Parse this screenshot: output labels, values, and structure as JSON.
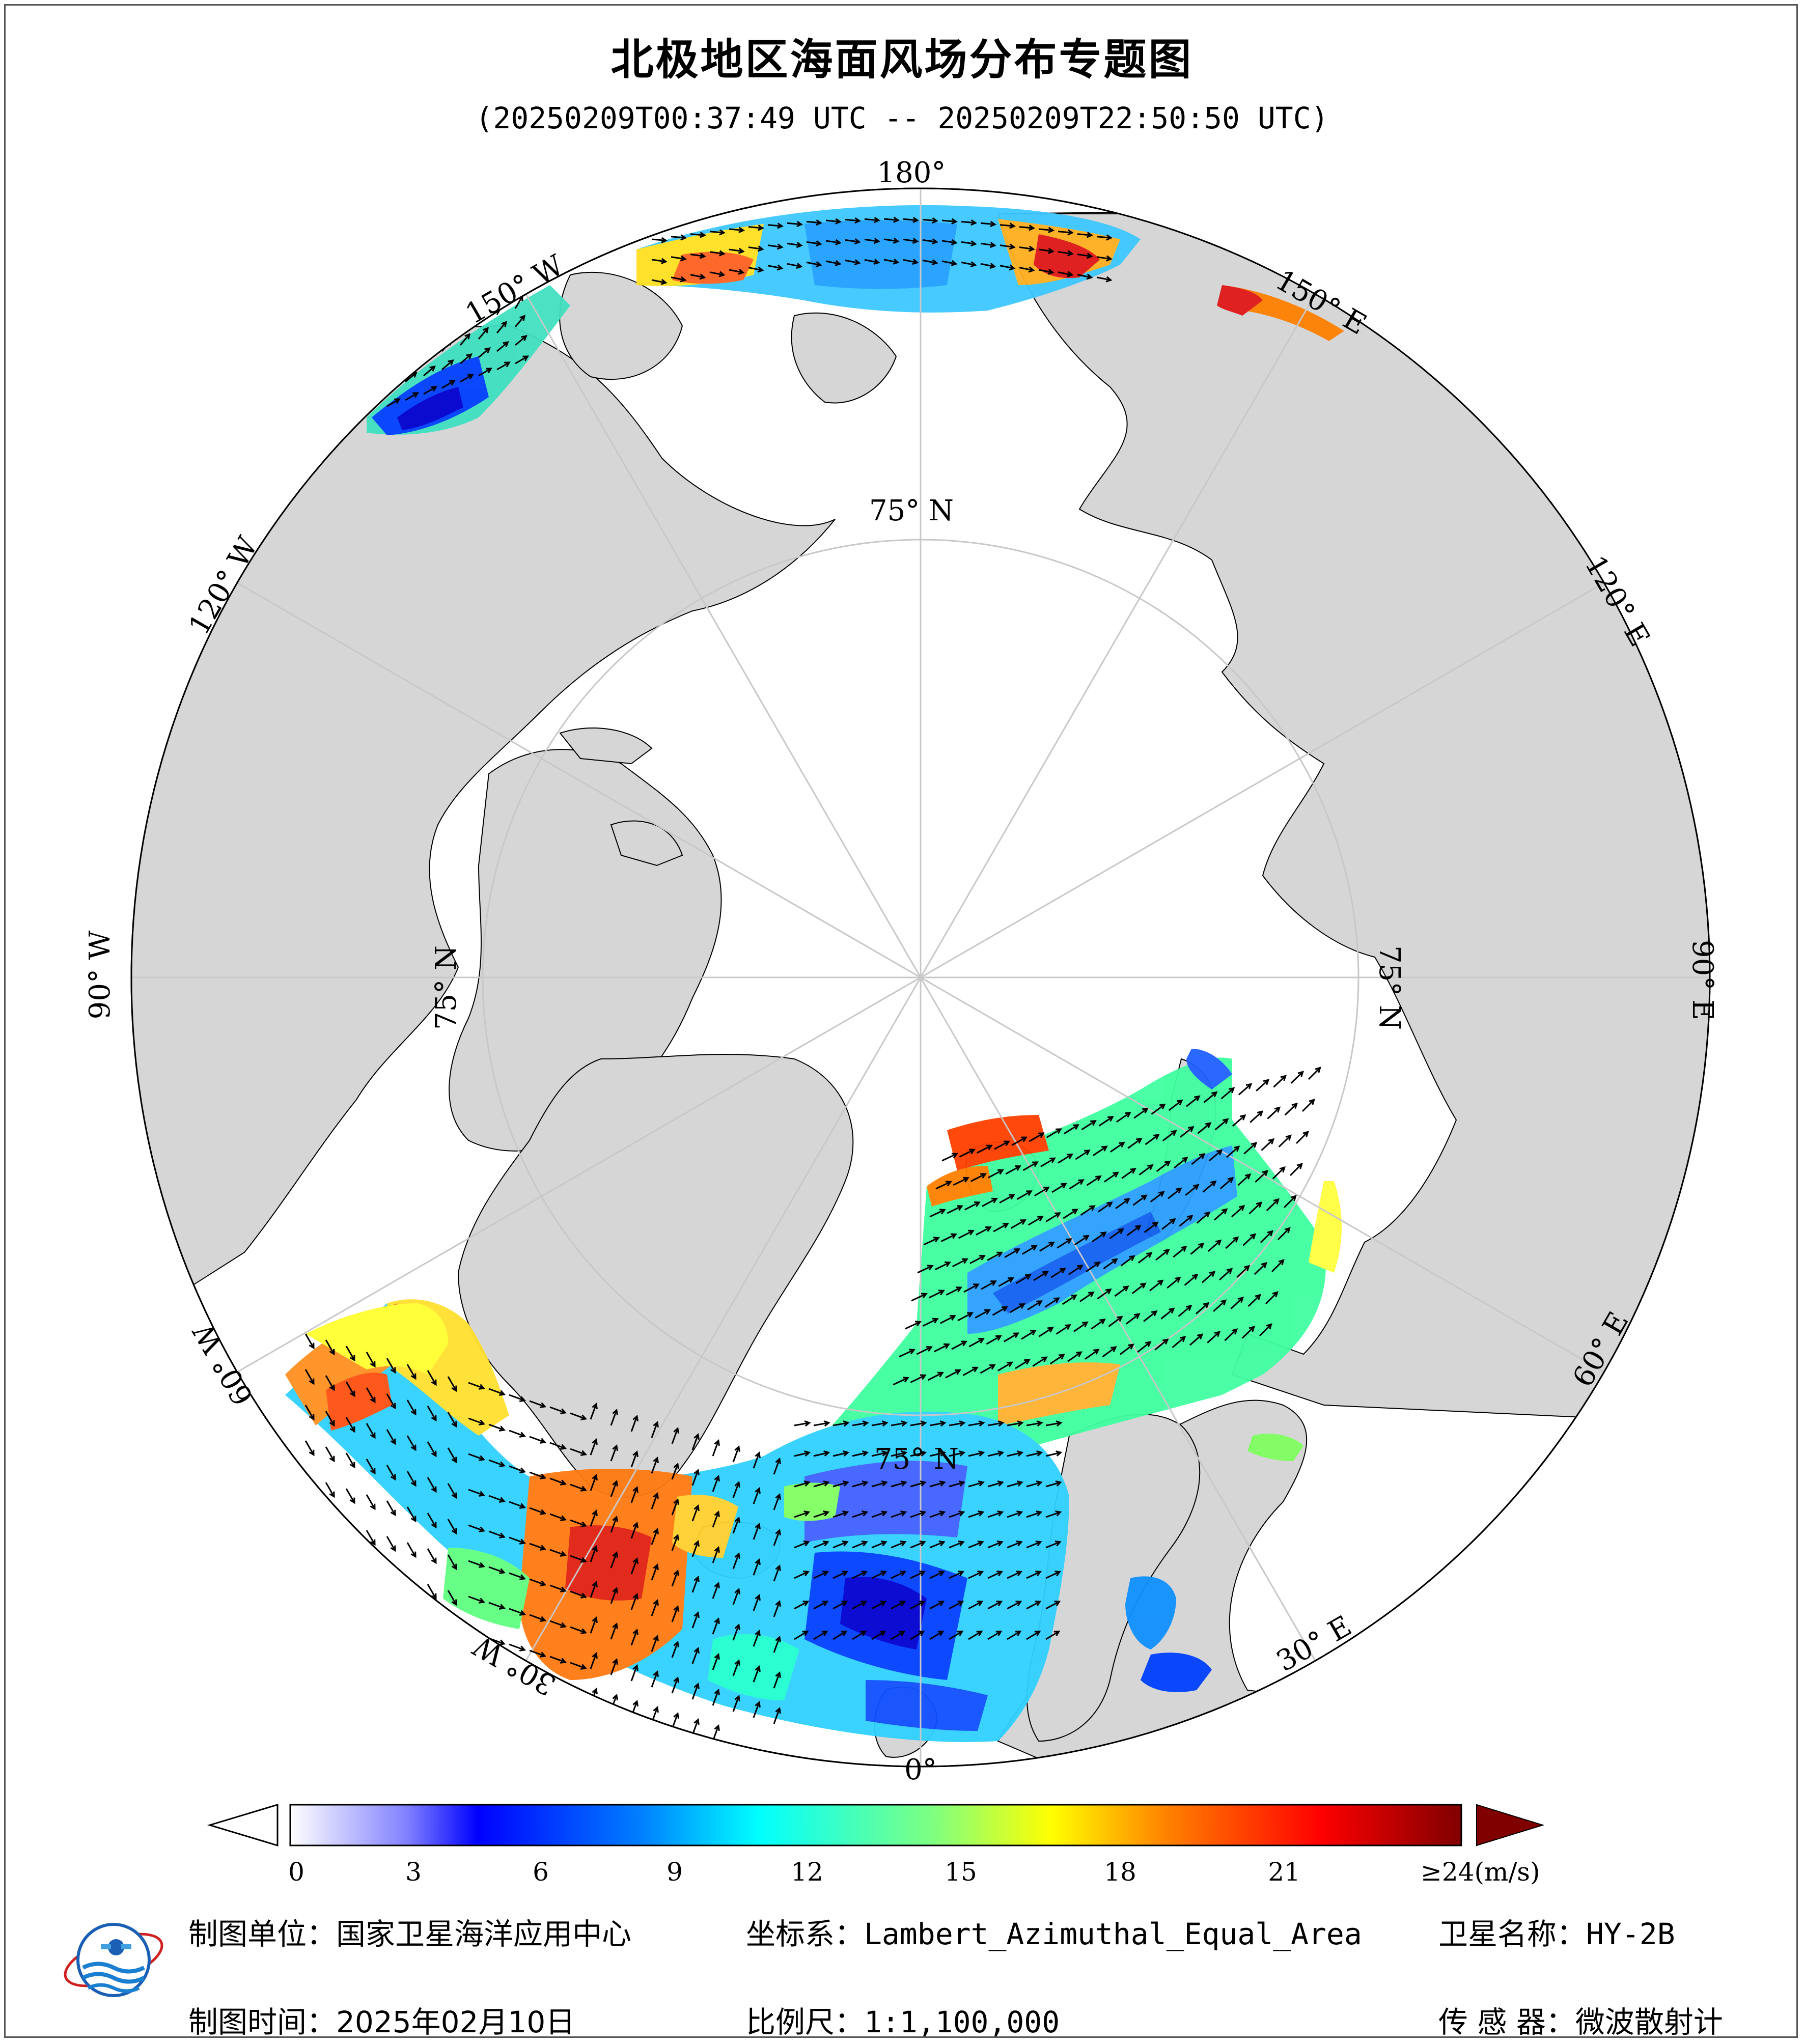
{
  "title": "北极地区海面风场分布专题图",
  "subtitle": "(20250209T00:37:49 UTC -- 20250209T22:50:50 UTC)",
  "map": {
    "projection": "Lambert_Azimuthal_Equal_Area",
    "center": "North Pole",
    "meridian_labels": [
      "180°",
      "150° E",
      "120° E",
      "90° E",
      "60° E",
      "30° E",
      "0°",
      "30° W",
      "60° W",
      "90° W",
      "120° W",
      "150° W"
    ],
    "parallel_labels": [
      "75° N",
      "75° N",
      "75° N",
      "75° N"
    ],
    "land_color": "#d6d6d6",
    "ocean_color": "#ffffff",
    "graticule_color": "#c8c8c8",
    "wind_arrow_color": "#000000"
  },
  "colorbar": {
    "unit": "(m/s)",
    "ticks": [
      "0",
      "3",
      "6",
      "9",
      "12",
      "15",
      "18",
      "21",
      "≥24"
    ],
    "min": 0,
    "max": 24,
    "colors": [
      "#ffffff",
      "#d9d9ff",
      "#b3b3ff",
      "#7f7fff",
      "#4d4dff",
      "#0000ff",
      "#0040ff",
      "#0080ff",
      "#00bfff",
      "#00ffff",
      "#40ffbf",
      "#80ff80",
      "#bfff40",
      "#ffff00",
      "#ffbf00",
      "#ff8000",
      "#ff4000",
      "#ff0000",
      "#bf0000",
      "#800000"
    ]
  },
  "footer": {
    "maker_label": "制图单位：",
    "maker_value": "国家卫星海洋应用中心",
    "coord_label": "坐标系：",
    "coord_value": "Lambert_Azimuthal_Equal_Area",
    "satellite_label": "卫星名称：",
    "satellite_value": "HY-2B",
    "date_label": "制图时间：",
    "date_value": "2025年02月10日",
    "scale_label": "比例尺：",
    "scale_value": "1:1,100,000",
    "sensor_label": "传 感 器：",
    "sensor_value": "微波散射计"
  }
}
